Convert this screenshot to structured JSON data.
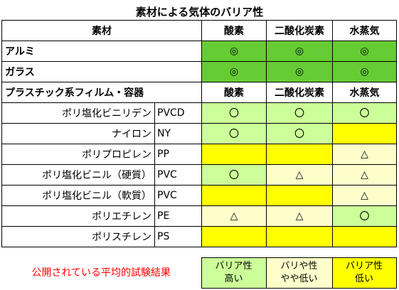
{
  "title": "素材による気体のバリア性",
  "colors": {
    "green": "#66cc33",
    "lightgreen": "#ccff99",
    "yellow": "#ffff00",
    "lightyellow": "#ffffcc",
    "red": "#ff0000"
  },
  "header": {
    "material": "素材",
    "oxygen": "酸素",
    "co2": "二酸化炭素",
    "water": "水蒸気"
  },
  "rows_top": [
    {
      "name": "アルミ",
      "oxygen": "◎",
      "co2": "◎",
      "water": "◎"
    },
    {
      "name": "ガラス",
      "oxygen": "◎",
      "co2": "◎",
      "water": "◎"
    }
  ],
  "plastic_header": {
    "name": "プラスチック系フィルム・容器",
    "oxygen": "酸素",
    "co2": "二酸化炭素",
    "water": "水蒸気"
  },
  "plastics": [
    {
      "name": "ポリ塩化ビニリデン",
      "code": "PVCD",
      "oxygen": "〇",
      "co2": "〇",
      "water": "〇"
    },
    {
      "name": "ナイロン",
      "code": "NY",
      "oxygen": "〇",
      "co2": "〇",
      "water": ""
    },
    {
      "name": "ポリプロピレン",
      "code": "PP",
      "oxygen": "",
      "co2": "",
      "water": "△"
    },
    {
      "name": "ポリ塩化ビニル（硬質）",
      "code": "PVC",
      "oxygen": "〇",
      "co2": "△",
      "water": "△"
    },
    {
      "name": "ポリ塩化ビニル（軟質）",
      "code": "PVC",
      "oxygen": "",
      "co2": "",
      "water": "△"
    },
    {
      "name": "ポリエチレン",
      "code": "PE",
      "oxygen": "△",
      "co2": "△",
      "water": "〇"
    },
    {
      "name": "ポリスチレン",
      "code": "PS",
      "oxygen": "",
      "co2": "",
      "water": ""
    }
  ],
  "legend": {
    "label": "公開されている平均的試験結果",
    "high_line1": "バリア性",
    "high_line2": "高い",
    "mid_line1": "バリや性",
    "mid_line2": "やや低い",
    "low_line1": "バリア性",
    "low_line2": "低い"
  }
}
